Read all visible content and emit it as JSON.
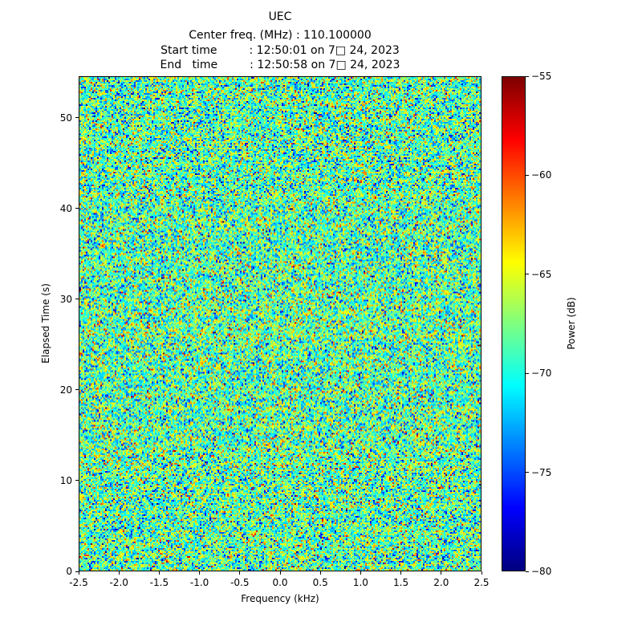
{
  "chart_data": {
    "type": "heatmap",
    "title": "UEC",
    "header_lines": [
      "Center freq. (MHz) : 110.100000",
      "Start time         : 12:50:01 on 7□ 24, 2023",
      "End   time         : 12:50:58 on 7□ 24, 2023"
    ],
    "xlabel": "Frequency (kHz)",
    "ylabel": "Elapsed Time (s)",
    "xlim": [
      -2.5,
      2.5
    ],
    "ylim": [
      0,
      54.6
    ],
    "x_ticks": {
      "values": [
        -2.5,
        -2.0,
        -1.5,
        -1.0,
        -0.5,
        0.0,
        0.5,
        1.0,
        1.5,
        2.0,
        2.5
      ],
      "labels": [
        "-2.5",
        "-2.0",
        "-1.5",
        "-1.0",
        "-0.5",
        "0.0",
        "0.5",
        "1.0",
        "1.5",
        "2.0",
        "2.5"
      ]
    },
    "y_ticks": {
      "values": [
        0,
        10,
        20,
        30,
        40,
        50
      ],
      "labels": [
        "0",
        "10",
        "20",
        "30",
        "40",
        "50"
      ]
    },
    "colorbar": {
      "label": "Power (dB)",
      "vmin": -80,
      "vmax": -55,
      "tick_values": [
        -55,
        -60,
        -65,
        -70,
        -75,
        -80
      ],
      "tick_labels": [
        "−55",
        "−60",
        "−65",
        "−70",
        "−75",
        "−80"
      ],
      "colormap": "jet"
    },
    "grid": false,
    "legend": null,
    "data_description": "Spectrogram of broadband noise; power values are random with no visible carrier signal.",
    "noise": {
      "mean_db": -68.5,
      "std_db": 3.8,
      "seed": 20230724,
      "cols": 250,
      "rows": 308
    }
  }
}
